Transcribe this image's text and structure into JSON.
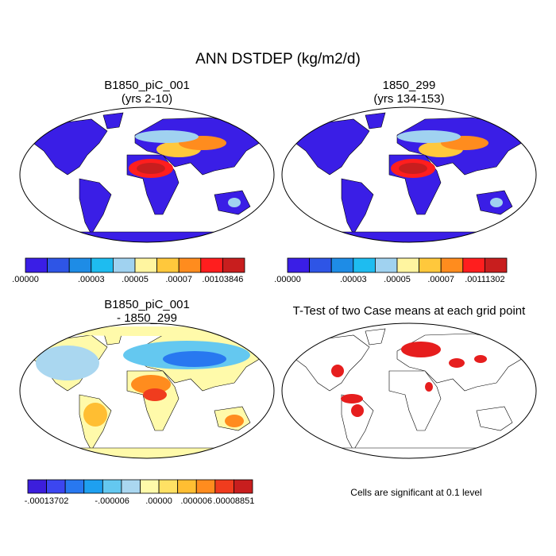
{
  "title": "ANN DSTDEP (kg/m2/d)",
  "panels": [
    {
      "title": "B1850_piC_001",
      "subtitle": "(yrs 2-10)",
      "colorbar": {
        "colors": [
          "#3a1ee6",
          "#2e55e6",
          "#1e8ce6",
          "#1ebcf0",
          "#a0d2f0",
          "#fff5a0",
          "#ffc83c",
          "#ff8c1e",
          "#ff1e1e",
          "#c81e1e"
        ],
        "labels": [
          ".00000",
          ".00003",
          ".00005",
          ".00007",
          ".00103846"
        ]
      }
    },
    {
      "title": "1850_299",
      "subtitle": "(yrs 134-153)",
      "colorbar": {
        "colors": [
          "#3a1ee6",
          "#2e55e6",
          "#1e8ce6",
          "#1ebcf0",
          "#a0d2f0",
          "#fff5a0",
          "#ffc83c",
          "#ff8c1e",
          "#ff1e1e",
          "#c81e1e"
        ],
        "labels": [
          ".00000",
          ".00003",
          ".00005",
          ".00007",
          ".00111302"
        ]
      }
    },
    {
      "title": "B1850_piC_001",
      "subtitle": "- 1850_299",
      "colorbar": {
        "colors": [
          "#3c1edc",
          "#3c46f0",
          "#2878f0",
          "#1ea0f0",
          "#64c8f0",
          "#aad7f0",
          "#fffaaa",
          "#ffe164",
          "#ffbe32",
          "#ff8c1e",
          "#f03c1e",
          "#c81e1e"
        ],
        "labels": [
          "-.00013702",
          "-.000006",
          ".00000",
          ".000006",
          ".00008851"
        ]
      }
    },
    {
      "title": "T-Test of two Case means at each grid point",
      "note": "Cells are significant at 0.1 level"
    }
  ]
}
